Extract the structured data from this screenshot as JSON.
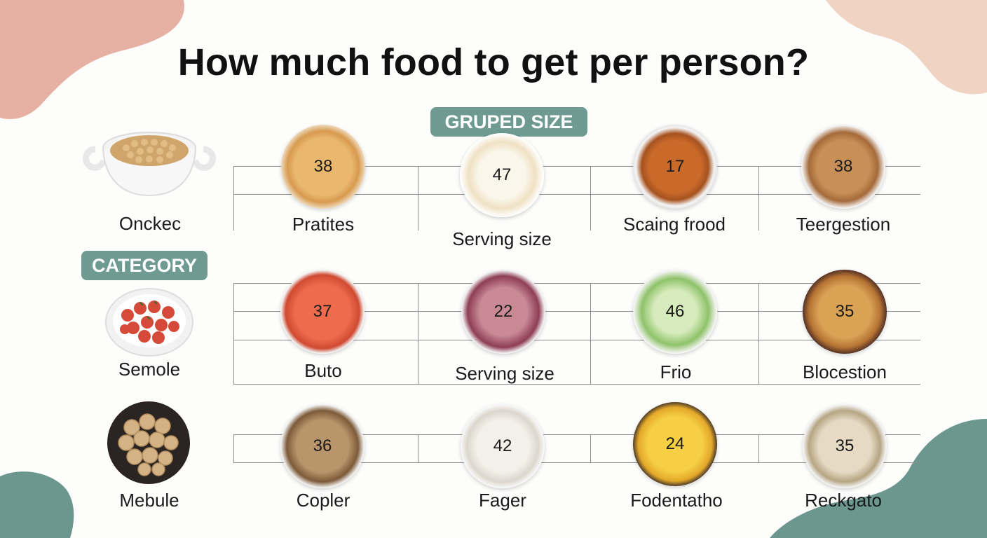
{
  "title": "How much food to get per person?",
  "tags": {
    "grouped": "GRUPED SIZE",
    "category": "CATEGORY"
  },
  "side_items": [
    {
      "label": "Onckec",
      "icon": "chickpea-bowl-icon"
    },
    {
      "label": "Semole",
      "icon": "tomato-plate-icon"
    },
    {
      "label": "Mebule",
      "icon": "walnut-bowl-icon"
    }
  ],
  "grid": [
    [
      {
        "value": "38",
        "label": "Pratites",
        "icon": "chips-plate-icon"
      },
      {
        "value": "47",
        "label": "Serving size",
        "icon": "cheese-plate-icon"
      },
      {
        "value": "17",
        "label": "Scaing frood",
        "icon": "sauce-bowl-icon"
      },
      {
        "value": "38",
        "label": "Teergestion",
        "icon": "potato-plate-icon"
      }
    ],
    [
      {
        "value": "37",
        "label": "Buto",
        "icon": "tomato-plate-icon"
      },
      {
        "value": "22",
        "label": "Serving size",
        "icon": "meat-plate-icon"
      },
      {
        "value": "46",
        "label": "Frio",
        "icon": "cucumber-plate-icon"
      },
      {
        "value": "35",
        "label": "Blocestion",
        "icon": "sausage-plate-icon"
      }
    ],
    [
      {
        "value": "36",
        "label": "Copler",
        "icon": "grated-food-plate-icon"
      },
      {
        "value": "42",
        "label": "Fager",
        "icon": "crumble-plate-icon"
      },
      {
        "value": "24",
        "label": "Fodentatho",
        "icon": "pasta-wheel-bowl-icon"
      },
      {
        "value": "35",
        "label": "Reckgato",
        "icon": "seed-plate-icon"
      }
    ]
  ],
  "colors": {
    "accent": "#6f9a92",
    "blob_pink": "#e6b1a2",
    "blob_peach": "#f1d3c4",
    "blob_teal": "#6b978f"
  }
}
